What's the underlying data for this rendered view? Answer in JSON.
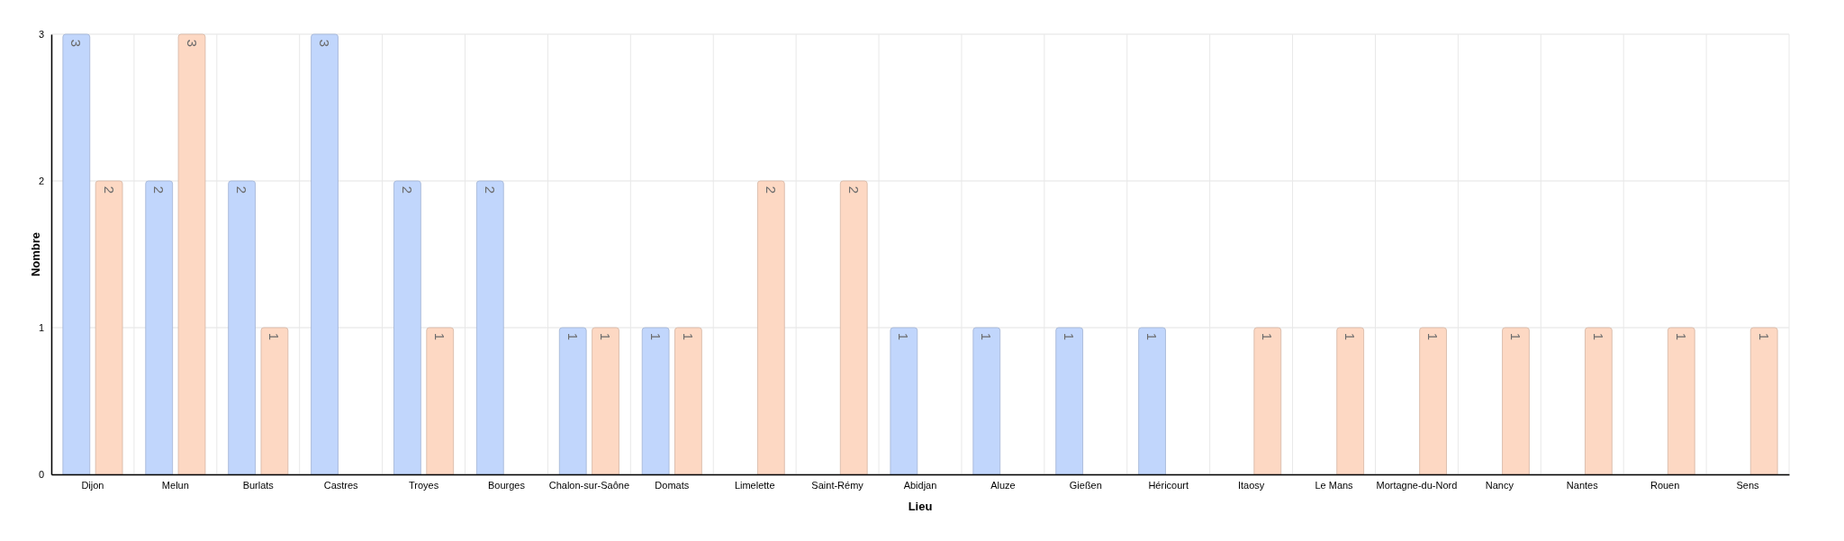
{
  "chart_data": {
    "type": "bar",
    "xlabel": "Lieu",
    "ylabel": "Nombre",
    "categories": [
      "Dijon",
      "Melun",
      "Burlats",
      "Castres",
      "Troyes",
      "Bourges",
      "Chalon-sur-Saône",
      "Domats",
      "Limelette",
      "Saint-Rémy",
      "Abidjan",
      "Aluze",
      "Gießen",
      "Héricourt",
      "Itaosy",
      "Le Mans",
      "Mortagne-du-Nord",
      "Nancy",
      "Nantes",
      "Rouen",
      "Sens"
    ],
    "series": [
      {
        "color": "#c1d6fc",
        "values": [
          3,
          2,
          2,
          3,
          2,
          2,
          1,
          1,
          null,
          null,
          1,
          1,
          1,
          1,
          null,
          null,
          null,
          null,
          null,
          null,
          null
        ]
      },
      {
        "color": "#fdd8c3",
        "values": [
          2,
          3,
          1,
          null,
          1,
          null,
          1,
          1,
          2,
          2,
          null,
          null,
          null,
          null,
          1,
          1,
          1,
          1,
          1,
          1,
          1
        ]
      }
    ],
    "ylim": [
      0,
      3
    ],
    "yticks": [
      0,
      1,
      2,
      3
    ],
    "grid": true,
    "data_labels": true
  }
}
